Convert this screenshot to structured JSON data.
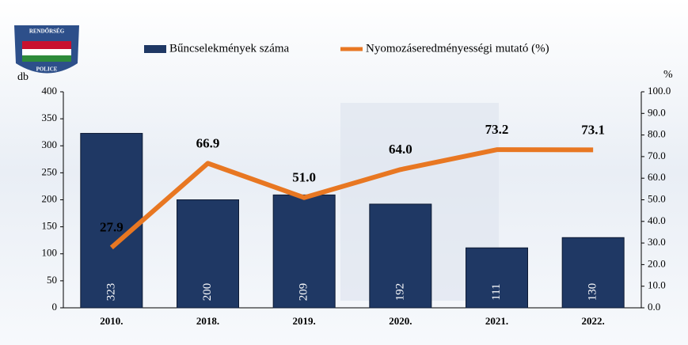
{
  "chart_data": {
    "type": "bar",
    "logo": {
      "top": "RENDŐRSÉG",
      "bottom": "POLICE"
    },
    "ylabel": "db",
    "y2label": "%",
    "categories": [
      "2010.",
      "2018.",
      "2019.",
      "2020.",
      "2021.",
      "2022."
    ],
    "series": [
      {
        "name": "Bűncselekmények száma",
        "type": "bar",
        "color": "#1f3864",
        "values": [
          323,
          200,
          209,
          192,
          111,
          130
        ]
      },
      {
        "name": "Nyomozáseredményességi mutató (%)",
        "type": "line",
        "axis": "y2",
        "color": "#e87722",
        "values": [
          27.9,
          66.9,
          51.0,
          64.0,
          73.2,
          73.1
        ],
        "value_labels": [
          "27.9",
          "66.9",
          "51.0",
          "64.0",
          "73.2",
          "73.1"
        ]
      }
    ],
    "ylim": [
      0,
      400
    ],
    "yticks": [
      0,
      50,
      100,
      150,
      200,
      250,
      300,
      350,
      400
    ],
    "y2lim": [
      0,
      100
    ],
    "y2ticks": [
      {
        "value": 0,
        "label": "0.0"
      },
      {
        "value": 10,
        "label": "10.0"
      },
      {
        "value": 20,
        "label": "20.0"
      },
      {
        "value": 30,
        "label": "30.0"
      },
      {
        "value": 40,
        "label": "40.0"
      },
      {
        "value": 50,
        "label": "50.0"
      },
      {
        "value": 60,
        "label": "60.0"
      },
      {
        "value": 70,
        "label": "70.0"
      },
      {
        "value": 80,
        "label": "80.0"
      },
      {
        "value": 90,
        "label": "90.0"
      },
      {
        "value": 100,
        "label": "100.0"
      }
    ],
    "legend": "top"
  }
}
